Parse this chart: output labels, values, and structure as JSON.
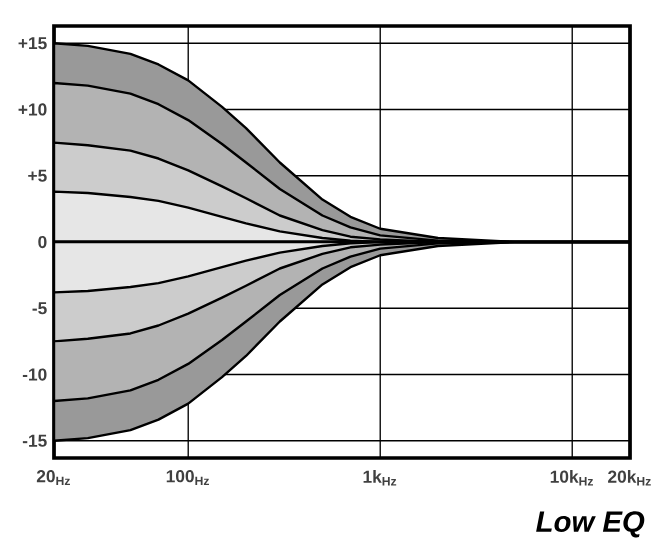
{
  "chart_data": {
    "type": "area",
    "x": [
      20,
      30,
      50,
      70,
      100,
      150,
      200,
      300,
      500,
      700,
      1000,
      2000,
      5000,
      20000
    ],
    "series": [
      {
        "color": "#999999",
        "values": [
          15,
          14.8,
          14.2,
          13.4,
          12.2,
          10.2,
          8.6,
          6,
          3.2,
          1.9,
          1,
          0.3,
          0,
          0
        ]
      },
      {
        "color": "#b3b3b3",
        "values": [
          12,
          11.8,
          11.2,
          10.4,
          9.2,
          7.4,
          6,
          4,
          2,
          1.1,
          0.5,
          0.1,
          0,
          0
        ]
      },
      {
        "color": "#cccccc",
        "values": [
          7.5,
          7.3,
          6.9,
          6.3,
          5.4,
          4.2,
          3.3,
          2,
          0.9,
          0.4,
          0.2,
          0,
          0,
          0
        ]
      },
      {
        "color": "#e6e6e6",
        "values": [
          3.8,
          3.7,
          3.4,
          3.1,
          2.6,
          1.9,
          1.4,
          0.8,
          0.3,
          0.1,
          0,
          0,
          0,
          0
        ]
      },
      {
        "color": "#999999",
        "values": [
          -15,
          -14.8,
          -14.2,
          -13.4,
          -12.2,
          -10.2,
          -8.6,
          -6,
          -3.2,
          -1.9,
          -1,
          -0.3,
          0,
          0
        ]
      },
      {
        "color": "#b3b3b3",
        "values": [
          -12,
          -11.8,
          -11.2,
          -10.4,
          -9.2,
          -7.4,
          -6,
          -4,
          -2,
          -1.1,
          -0.5,
          -0.1,
          0,
          0
        ]
      },
      {
        "color": "#cccccc",
        "values": [
          -7.5,
          -7.3,
          -6.9,
          -6.3,
          -5.4,
          -4.2,
          -3.3,
          -2,
          -0.9,
          -0.4,
          -0.2,
          0,
          0,
          0
        ]
      },
      {
        "color": "#e6e6e6",
        "values": [
          -3.8,
          -3.7,
          -3.4,
          -3.1,
          -2.6,
          -1.9,
          -1.4,
          -0.8,
          -0.3,
          -0.1,
          0,
          0,
          0,
          0
        ]
      }
    ],
    "log": "x",
    "xlim": [
      20,
      20000
    ],
    "xticks": [
      {
        "value": 20,
        "label": "20$_{Hz}$"
      },
      {
        "value": 100,
        "label": "100$_{Hz}$"
      },
      {
        "value": 1000,
        "label": "1k$_{Hz}$"
      },
      {
        "value": 10000,
        "label": "10k$_{Hz}$"
      },
      {
        "value": 20000,
        "label": "20k$_{Hz}$"
      }
    ],
    "ylim": [
      -16.3,
      16.3
    ],
    "yticks": [
      {
        "value": 15,
        "label": "+15"
      },
      {
        "value": 10,
        "label": "+10"
      },
      {
        "value": 5,
        "label": "+5"
      },
      0,
      -5,
      -10,
      -15
    ],
    "grid": true,
    "line_style": "solid",
    "annotations": [
      "Low EQ"
    ]
  }
}
